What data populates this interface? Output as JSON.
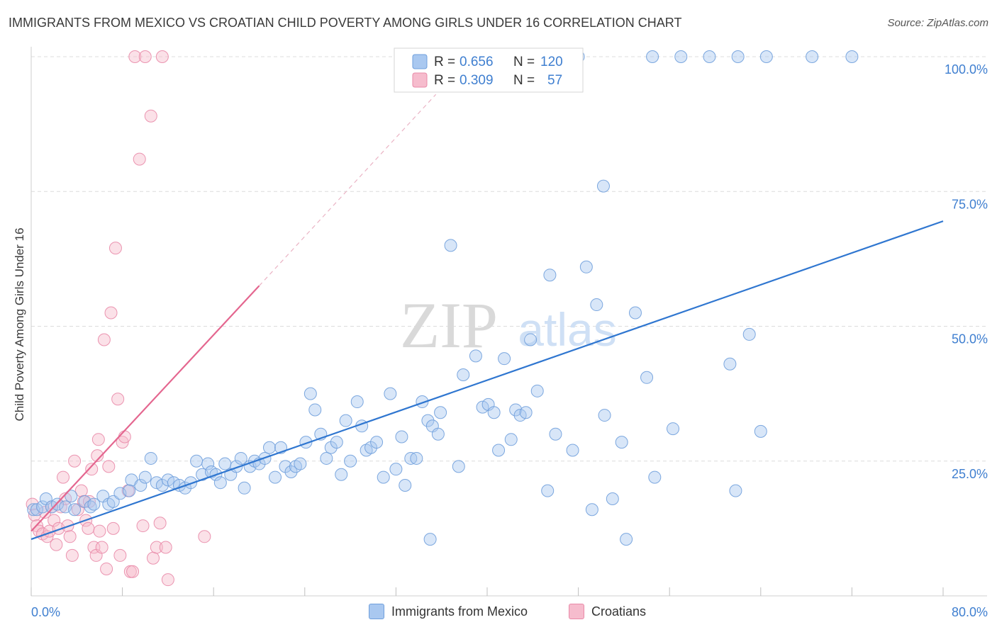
{
  "header": {
    "title": "IMMIGRANTS FROM MEXICO VS CROATIAN CHILD POVERTY AMONG GIRLS UNDER 16 CORRELATION CHART",
    "source": "Source: ZipAtlas.com"
  },
  "watermark": {
    "zip": "ZIP",
    "atlas": "atlas"
  },
  "colors": {
    "blue_fill": "#a9c8f0",
    "blue_stroke": "#6f9fdc",
    "blue_line": "#2f76d0",
    "pink_fill": "#f6bccd",
    "pink_stroke": "#e98aa8",
    "pink_line": "#e4668f",
    "axis_label_blue": "#3f7fd0",
    "grid": "#dcdcdc"
  },
  "legend_top": {
    "rows": [
      {
        "r_label": "R = ",
        "r_value": "0.656",
        "n_label": "N = ",
        "n_value": "120"
      },
      {
        "r_label": "R = ",
        "r_value": "0.309",
        "n_label": "N = ",
        "n_value": "57"
      }
    ]
  },
  "legend_bottom": {
    "items": [
      {
        "label": "Immigrants from Mexico"
      },
      {
        "label": "Croatians"
      }
    ]
  },
  "chart_data": {
    "type": "scatter",
    "title": "IMMIGRANTS FROM MEXICO VS CROATIAN CHILD POVERTY AMONG GIRLS UNDER 16 CORRELATION CHART",
    "xlabel": "",
    "ylabel": "Child Poverty Among Girls Under 16",
    "xlim": [
      0,
      80
    ],
    "ylim": [
      0,
      100
    ],
    "x_tick_labels": [
      {
        "value": 0,
        "label": "0.0%"
      },
      {
        "value": 80,
        "label": "80.0%"
      }
    ],
    "y_tick_labels": [
      {
        "value": 25,
        "label": "25.0%"
      },
      {
        "value": 50,
        "label": "50.0%"
      },
      {
        "value": 75,
        "label": "75.0%"
      },
      {
        "value": 100,
        "label": "100.0%"
      }
    ],
    "grid": true,
    "legend_placement": "top-center",
    "series": [
      {
        "name": "Immigrants from Mexico",
        "color": "#6f9fdc",
        "R": 0.656,
        "N": 120,
        "trend": {
          "x": [
            0,
            80
          ],
          "y": [
            10.5,
            69.5
          ]
        },
        "points": [
          [
            0.2,
            16
          ],
          [
            0.5,
            16
          ],
          [
            1.0,
            16.5
          ],
          [
            1.3,
            18
          ],
          [
            1.8,
            16.5
          ],
          [
            2.3,
            17
          ],
          [
            3.0,
            16.5
          ],
          [
            3.5,
            18.5
          ],
          [
            3.8,
            16
          ],
          [
            4.7,
            17.5
          ],
          [
            5.2,
            16.5
          ],
          [
            5.5,
            17
          ],
          [
            6.3,
            18.5
          ],
          [
            6.8,
            17
          ],
          [
            7.2,
            17.5
          ],
          [
            7.8,
            19
          ],
          [
            8.8,
            21.5
          ],
          [
            8.6,
            19.5
          ],
          [
            9.6,
            20.5
          ],
          [
            10.0,
            22
          ],
          [
            10.5,
            25.5
          ],
          [
            11.0,
            21
          ],
          [
            11.5,
            20.5
          ],
          [
            12.0,
            21.5
          ],
          [
            12.5,
            21
          ],
          [
            13.0,
            20.5
          ],
          [
            13.5,
            20
          ],
          [
            14.0,
            21
          ],
          [
            14.5,
            25
          ],
          [
            15.0,
            22.5
          ],
          [
            15.5,
            24.5
          ],
          [
            15.8,
            23
          ],
          [
            16.2,
            22.5
          ],
          [
            16.6,
            21
          ],
          [
            17.0,
            24.5
          ],
          [
            17.5,
            22.5
          ],
          [
            18.0,
            24
          ],
          [
            18.4,
            25.5
          ],
          [
            18.7,
            20
          ],
          [
            19.2,
            24
          ],
          [
            19.6,
            25
          ],
          [
            20.0,
            24.5
          ],
          [
            20.5,
            25.5
          ],
          [
            20.9,
            27.5
          ],
          [
            21.4,
            22
          ],
          [
            21.9,
            27.5
          ],
          [
            22.3,
            24
          ],
          [
            22.8,
            23
          ],
          [
            23.2,
            24
          ],
          [
            23.6,
            24.5
          ],
          [
            24.1,
            28.5
          ],
          [
            24.5,
            37.5
          ],
          [
            24.9,
            34.5
          ],
          [
            25.4,
            30
          ],
          [
            25.9,
            25.5
          ],
          [
            26.3,
            27.5
          ],
          [
            26.8,
            28.5
          ],
          [
            27.2,
            22.5
          ],
          [
            27.6,
            32.5
          ],
          [
            28.0,
            25
          ],
          [
            28.6,
            36
          ],
          [
            29.0,
            31.5
          ],
          [
            29.4,
            27
          ],
          [
            29.8,
            27.5
          ],
          [
            30.3,
            28.5
          ],
          [
            30.9,
            22
          ],
          [
            31.5,
            37.5
          ],
          [
            32.0,
            23.5
          ],
          [
            32.5,
            29.5
          ],
          [
            32.8,
            20.5
          ],
          [
            33.3,
            25.5
          ],
          [
            33.8,
            25.5
          ],
          [
            34.3,
            36
          ],
          [
            34.8,
            32.5
          ],
          [
            35.2,
            31.5
          ],
          [
            35.7,
            30
          ],
          [
            35.9,
            34
          ],
          [
            36.8,
            65
          ],
          [
            37.5,
            24
          ],
          [
            37.9,
            41
          ],
          [
            39.0,
            44.5
          ],
          [
            39.6,
            35
          ],
          [
            40.1,
            35.5
          ],
          [
            40.6,
            34
          ],
          [
            41.0,
            27
          ],
          [
            41.5,
            44
          ],
          [
            42.1,
            29
          ],
          [
            42.5,
            34.5
          ],
          [
            42.9,
            33.5
          ],
          [
            43.4,
            34
          ],
          [
            43.8,
            47.5
          ],
          [
            44.4,
            38
          ],
          [
            45.5,
            59.5
          ],
          [
            46.0,
            30
          ],
          [
            47.5,
            27
          ],
          [
            48.7,
            61
          ],
          [
            49.6,
            54
          ],
          [
            50.3,
            33.5
          ],
          [
            51.8,
            28.5
          ],
          [
            53.0,
            52.5
          ],
          [
            54.0,
            40.5
          ],
          [
            56.3,
            31
          ],
          [
            61.3,
            43
          ],
          [
            63.0,
            48.5
          ],
          [
            64.0,
            30.5
          ],
          [
            35.0,
            10.5
          ],
          [
            45.3,
            19.5
          ],
          [
            49.2,
            16
          ],
          [
            51.0,
            18
          ],
          [
            54.7,
            22
          ],
          [
            52.2,
            10.5
          ],
          [
            61.8,
            19.5
          ],
          [
            50.2,
            76
          ],
          [
            48.0,
            100
          ],
          [
            54.5,
            100
          ],
          [
            57.0,
            100
          ],
          [
            59.5,
            100
          ],
          [
            62.0,
            100
          ],
          [
            64.5,
            100
          ],
          [
            68.5,
            100
          ],
          [
            72.0,
            100
          ]
        ]
      },
      {
        "name": "Croatians",
        "color": "#e98aa8",
        "R": 0.309,
        "N": 57,
        "trend": {
          "x": [
            0,
            20
          ],
          "y": [
            12,
            57.5
          ]
        },
        "trend_extension": {
          "x": [
            20,
            35.5
          ],
          "y": [
            57.5,
            93
          ]
        },
        "points": [
          [
            0.1,
            17
          ],
          [
            0.3,
            15
          ],
          [
            0.5,
            13
          ],
          [
            0.7,
            12
          ],
          [
            1.0,
            11.5
          ],
          [
            1.2,
            15.5
          ],
          [
            1.4,
            11
          ],
          [
            1.6,
            12
          ],
          [
            1.8,
            16.5
          ],
          [
            2.0,
            14
          ],
          [
            2.2,
            9.5
          ],
          [
            2.4,
            12.5
          ],
          [
            2.6,
            16.5
          ],
          [
            2.8,
            22
          ],
          [
            3.0,
            18
          ],
          [
            3.2,
            13
          ],
          [
            3.4,
            11
          ],
          [
            3.6,
            7.5
          ],
          [
            3.8,
            25
          ],
          [
            4.1,
            16
          ],
          [
            4.4,
            19.5
          ],
          [
            4.6,
            17.5
          ],
          [
            4.8,
            14
          ],
          [
            5.0,
            12.5
          ],
          [
            5.1,
            17.5
          ],
          [
            5.3,
            23.5
          ],
          [
            5.5,
            9
          ],
          [
            5.7,
            7.5
          ],
          [
            5.8,
            26
          ],
          [
            5.9,
            29
          ],
          [
            6.0,
            12
          ],
          [
            6.2,
            9
          ],
          [
            6.4,
            47.5
          ],
          [
            6.6,
            5
          ],
          [
            6.8,
            24
          ],
          [
            7.0,
            52.5
          ],
          [
            7.2,
            12.5
          ],
          [
            7.4,
            64.5
          ],
          [
            7.6,
            36.5
          ],
          [
            7.8,
            7.5
          ],
          [
            8.0,
            28.5
          ],
          [
            8.2,
            29.5
          ],
          [
            8.5,
            19.5
          ],
          [
            8.7,
            4.5
          ],
          [
            8.9,
            4.5
          ],
          [
            9.1,
            100
          ],
          [
            9.5,
            81
          ],
          [
            9.8,
            13
          ],
          [
            10.0,
            100
          ],
          [
            10.5,
            89
          ],
          [
            10.7,
            7
          ],
          [
            11.0,
            9
          ],
          [
            11.3,
            13.5
          ],
          [
            11.8,
            9
          ],
          [
            12.0,
            3
          ],
          [
            11.5,
            100
          ],
          [
            15.2,
            11
          ]
        ]
      }
    ]
  }
}
